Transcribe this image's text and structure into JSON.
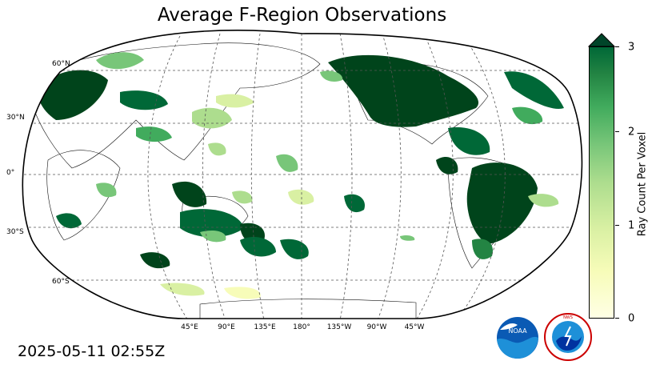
{
  "title": "Average F-Region Observations",
  "timestamp": "2025-05-11 02:55Z",
  "lat_labels": [
    "60°N",
    "30°N",
    "0°",
    "30°S",
    "60°S"
  ],
  "lon_labels": [
    "45°E",
    "90°E",
    "135°E",
    "180°",
    "135°W",
    "90°W",
    "45°W"
  ],
  "colorbar": {
    "label": "Ray Count Per Voxel",
    "ticks": [
      "0",
      "1",
      "2",
      "3"
    ],
    "range": [
      0,
      3
    ],
    "extend": "max",
    "colors": [
      "#ffffe5",
      "#f7fcb9",
      "#d9f0a3",
      "#addd8e",
      "#78c679",
      "#41ab5d",
      "#238443",
      "#006837",
      "#004529"
    ]
  },
  "logos": {
    "noaa": "NOAA",
    "nws": "NATIONAL WEATHER SERVICE"
  }
}
